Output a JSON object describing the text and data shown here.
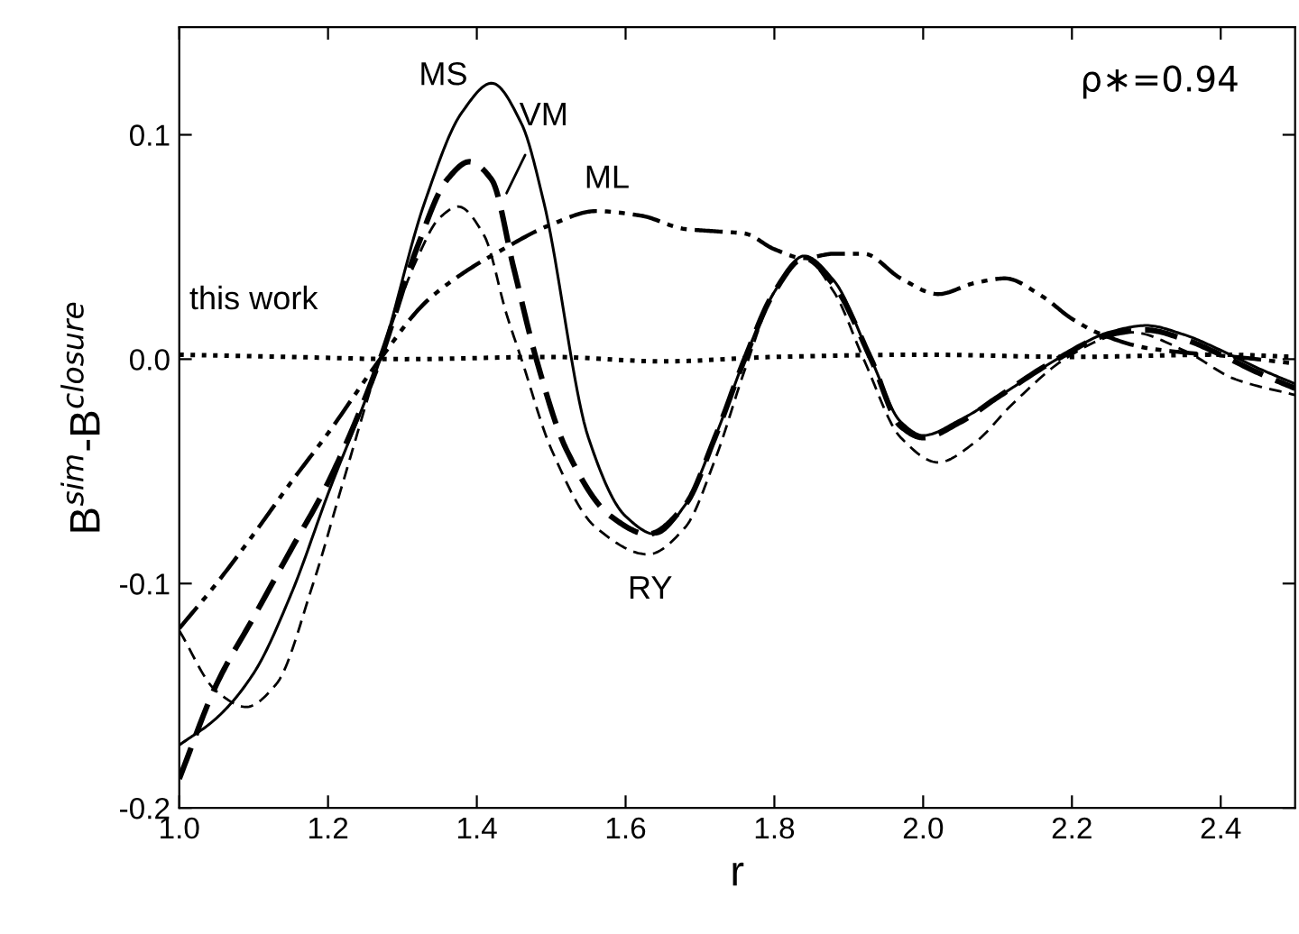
{
  "chart_data": {
    "type": "line",
    "xlabel": "r",
    "ylabel": "B$^{sim}$-B$^{closure}$",
    "annotations": [
      "ρ∗=0.94"
    ],
    "xlim": [
      1.0,
      2.5
    ],
    "ylim": [
      -0.2,
      0.148
    ],
    "xticks": [
      {
        "value": 1,
        "label": "1.0"
      },
      1.2,
      1.4,
      1.6,
      1.8,
      {
        "value": 2,
        "label": "2.0"
      },
      2.2,
      2.4
    ],
    "yticks": [
      -0.2,
      -0.1,
      {
        "value": 0,
        "label": "0.0"
      },
      0.1
    ],
    "grid": false,
    "legend": false,
    "marker": "none",
    "series": [
      {
        "name": "MS",
        "color": "#000000",
        "line_style": "solid",
        "x": [
          1.0,
          1.05,
          1.1,
          1.15,
          1.2,
          1.27,
          1.33,
          1.38,
          1.42,
          1.46,
          1.49,
          1.55,
          1.6,
          1.64,
          1.68,
          1.72,
          1.76,
          1.8,
          1.84,
          1.88,
          1.93,
          1.97,
          2.0,
          2.05,
          2.1,
          2.18,
          2.25,
          2.3,
          2.35,
          2.4,
          2.45,
          2.5
        ],
        "values": [
          -0.172,
          -0.16,
          -0.14,
          -0.105,
          -0.06,
          0,
          0.07,
          0.11,
          0.123,
          0.105,
          0.07,
          -0.035,
          -0.07,
          -0.078,
          -0.065,
          -0.035,
          0,
          0.03,
          0.046,
          0.035,
          0,
          -0.028,
          -0.034,
          -0.027,
          -0.017,
          0,
          0.012,
          0.015,
          0.011,
          0.004,
          -0.004,
          -0.011
        ]
      },
      {
        "name": "VM",
        "color": "#000000",
        "line_style": "longdash",
        "x": [
          1.0,
          1.05,
          1.1,
          1.15,
          1.2,
          1.27,
          1.32,
          1.36,
          1.39,
          1.42,
          1.45,
          1.48,
          1.52,
          1.58,
          1.63,
          1.68,
          1.72,
          1.76,
          1.8,
          1.84,
          1.88,
          1.93,
          1.97,
          2.0,
          2.05,
          2.1,
          2.18,
          2.25,
          2.3,
          2.35,
          2.4,
          2.45,
          2.5
        ],
        "values": [
          -0.187,
          -0.145,
          -0.115,
          -0.085,
          -0.055,
          0,
          0.05,
          0.08,
          0.088,
          0.08,
          0.04,
          0,
          -0.04,
          -0.07,
          -0.078,
          -0.065,
          -0.035,
          0,
          0.03,
          0.045,
          0.033,
          0,
          -0.03,
          -0.035,
          -0.028,
          -0.017,
          0,
          0.011,
          0.013,
          0.009,
          0.002,
          -0.006,
          -0.013
        ]
      },
      {
        "name": "RY",
        "color": "#000000",
        "line_style": "dashed",
        "x": [
          1.0,
          1.05,
          1.09,
          1.13,
          1.18,
          1.22,
          1.27,
          1.32,
          1.35,
          1.375,
          1.41,
          1.44,
          1.46,
          1.5,
          1.56,
          1.63,
          1.68,
          1.72,
          1.76,
          1.8,
          1.84,
          1.88,
          1.92,
          1.97,
          2.02,
          2.07,
          2.12,
          2.19,
          2.25,
          2.28,
          2.35,
          2.42,
          2.5
        ],
        "values": [
          -0.121,
          -0.148,
          -0.155,
          -0.145,
          -0.1,
          -0.055,
          0,
          0.045,
          0.063,
          0.068,
          0.055,
          0.02,
          0,
          -0.04,
          -0.075,
          -0.087,
          -0.075,
          -0.045,
          -0.005,
          0.03,
          0.045,
          0.03,
          0,
          -0.035,
          -0.046,
          -0.037,
          -0.02,
          0,
          0.01,
          0.012,
          0.004,
          -0.009,
          -0.016
        ]
      },
      {
        "name": "ML",
        "color": "#000000",
        "line_style": "dashdotdot",
        "x": [
          1.0,
          1.05,
          1.1,
          1.15,
          1.2,
          1.27,
          1.33,
          1.38,
          1.43,
          1.5,
          1.56,
          1.62,
          1.68,
          1.72,
          1.76,
          1.8,
          1.84,
          1.88,
          1.92,
          1.97,
          2.02,
          2.07,
          2.11,
          2.16,
          2.2,
          2.24,
          2.3,
          2.35,
          2.42,
          2.5
        ],
        "values": [
          -0.12,
          -0.1,
          -0.078,
          -0.055,
          -0.033,
          0,
          0.025,
          0.038,
          0.048,
          0.06,
          0.066,
          0.064,
          0.058,
          0.057,
          0.056,
          0.049,
          0.045,
          0.047,
          0.047,
          0.036,
          0.029,
          0.034,
          0.036,
          0.028,
          0.018,
          0.011,
          0.005,
          0.003,
          0.001,
          -0.002
        ]
      },
      {
        "name": "this work",
        "color": "#000000",
        "line_style": "dotted",
        "x": [
          1.0,
          1.15,
          1.3,
          1.5,
          1.65,
          1.8,
          2.0,
          2.2,
          2.4,
          2.5
        ],
        "values": [
          0.002,
          0.001,
          0,
          0.001,
          -0.001,
          0.001,
          0.002,
          0.001,
          0.002,
          0.001
        ]
      }
    ]
  }
}
